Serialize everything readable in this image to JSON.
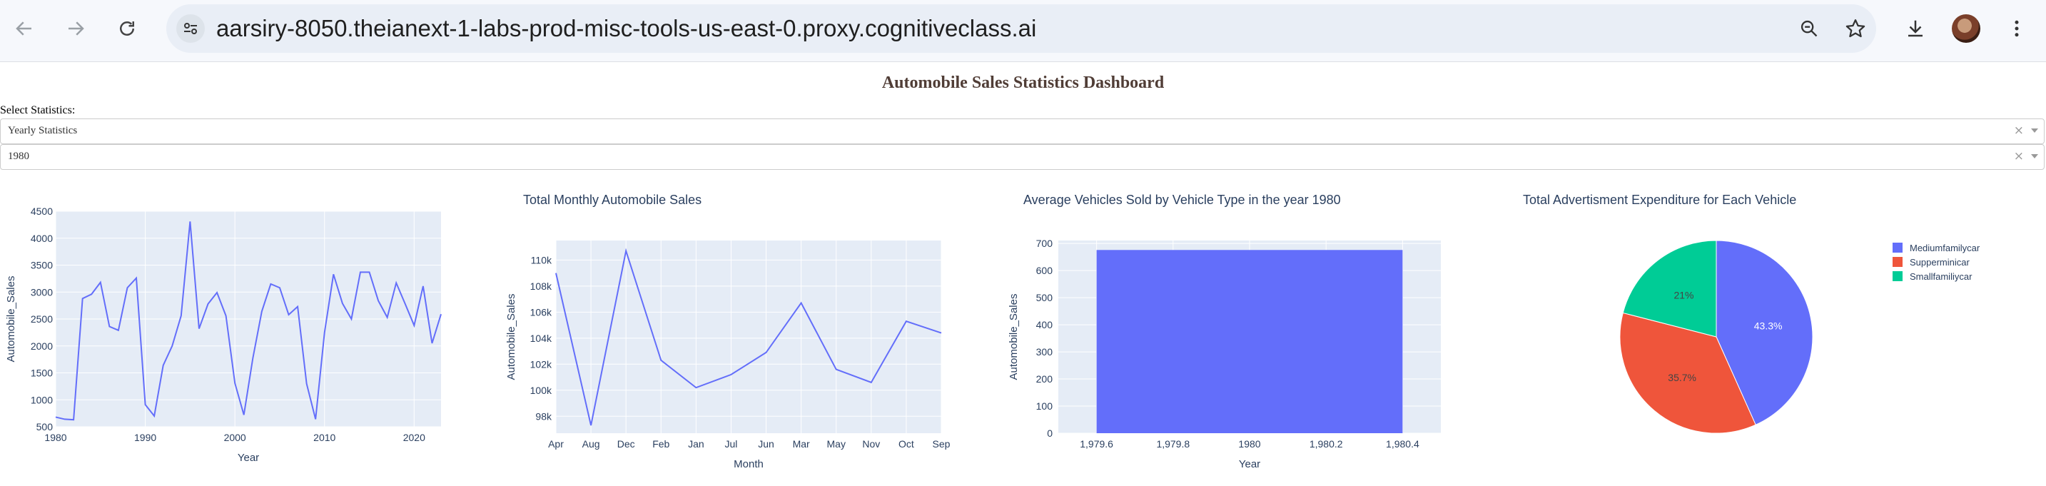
{
  "browser": {
    "url": "aarsiry-8050.theianext-1-labs-prod-misc-tools-us-east-0.proxy.cognitiveclass.ai"
  },
  "dashboard": {
    "title": "Automobile Sales Statistics Dashboard",
    "select_label": "Select Statistics:",
    "statistics_dropdown": "Yearly Statistics",
    "year_dropdown": "1980",
    "clear_symbol": "×"
  },
  "chart_data": [
    {
      "type": "line",
      "title": "",
      "xlabel": "Year",
      "ylabel": "Automobile_Sales",
      "xlim": [
        1980,
        2023
      ],
      "ylim": [
        500,
        4500
      ],
      "x_ticks": [
        1980,
        1990,
        2000,
        2010,
        2020
      ],
      "x_tick_labels": [
        "1980",
        "1990",
        "2000",
        "2010",
        "2020"
      ],
      "y_ticks": [
        500,
        1000,
        1500,
        2000,
        2500,
        3000,
        3500,
        4000,
        4500
      ],
      "y_tick_labels": [
        "500",
        "1000",
        "1500",
        "2000",
        "2500",
        "3000",
        "3500",
        "4000",
        "4500"
      ],
      "x": [
        1980,
        1981,
        1982,
        1983,
        1984,
        1985,
        1986,
        1987,
        1988,
        1989,
        1990,
        1991,
        1992,
        1993,
        1994,
        1995,
        1996,
        1997,
        1998,
        1999,
        2000,
        2001,
        2002,
        2003,
        2004,
        2005,
        2006,
        2007,
        2008,
        2009,
        2010,
        2011,
        2012,
        2013,
        2014,
        2015,
        2016,
        2017,
        2018,
        2019,
        2020,
        2021,
        2022,
        2023
      ],
      "values": [
        680,
        640,
        630,
        2880,
        2960,
        3180,
        2360,
        2290,
        3080,
        3260,
        910,
        700,
        1640,
        2000,
        2560,
        4310,
        2320,
        2780,
        2990,
        2560,
        1310,
        720,
        1770,
        2640,
        3150,
        3080,
        2580,
        2730,
        1300,
        640,
        2250,
        3330,
        2790,
        2500,
        3370,
        3370,
        2840,
        2530,
        3170,
        2780,
        2380,
        3110,
        2050,
        2590
      ],
      "line_color": "#636efa"
    },
    {
      "type": "line",
      "title": "Total Monthly Automobile Sales",
      "xlabel": "Month",
      "ylabel": "Automobile_Sales",
      "categories": [
        "Apr",
        "Aug",
        "Dec",
        "Feb",
        "Jan",
        "Jul",
        "Jun",
        "Mar",
        "May",
        "Nov",
        "Oct",
        "Sep"
      ],
      "values": [
        109000,
        97300,
        110700,
        102300,
        100200,
        101200,
        102900,
        106700,
        101600,
        100600,
        105300,
        104400
      ],
      "ylim": [
        96700,
        111500
      ],
      "y_ticks": [
        98000,
        100000,
        102000,
        104000,
        106000,
        108000,
        110000
      ],
      "y_tick_labels": [
        "98k",
        "100k",
        "102k",
        "104k",
        "106k",
        "108k",
        "110k"
      ],
      "line_color": "#636efa"
    },
    {
      "type": "bar",
      "title": "Average Vehicles Sold by Vehicle Type in the year 1980",
      "xlabel": "Year",
      "ylabel": "Automobile_Sales",
      "x": [
        1980
      ],
      "values": [
        676
      ],
      "xlim": [
        1979.5,
        1980.5
      ],
      "ylim": [
        0,
        711
      ],
      "x_ticks": [
        1979.6,
        1979.8,
        1980,
        1980.2,
        1980.4
      ],
      "x_tick_labels": [
        "1,979.6",
        "1,979.8",
        "1980",
        "1,980.2",
        "1,980.4"
      ],
      "y_ticks": [
        0,
        100,
        200,
        300,
        400,
        500,
        600,
        700
      ],
      "y_tick_labels": [
        "0",
        "100",
        "200",
        "300",
        "400",
        "500",
        "600",
        "700"
      ],
      "bar_color": "#636efa"
    },
    {
      "type": "pie",
      "title": "Total Advertisment Expenditure for Each Vehicle",
      "labels": [
        "Mediumfamilycar",
        "Supperminicar",
        "Smallfamiliycar"
      ],
      "values": [
        43.3,
        35.7,
        21
      ],
      "value_labels": [
        "43.3%",
        "35.7%",
        "21%"
      ],
      "colors": [
        "#636efa",
        "#ef553b",
        "#00cc96"
      ]
    }
  ]
}
